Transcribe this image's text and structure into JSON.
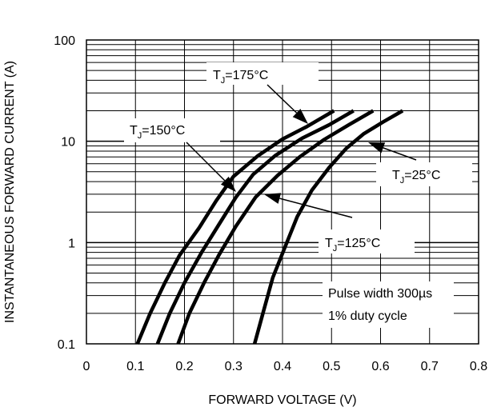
{
  "chart_data": {
    "type": "line",
    "title": "",
    "xlabel": "FORWARD VOLTAGE (V)",
    "ylabel": "INSTANTANEOUS FORWARD CURRENT (A)",
    "xlim": [
      0,
      0.8
    ],
    "ylim": [
      0.1,
      100
    ],
    "y_scale": "log",
    "grid": true,
    "x_ticks": [
      {
        "value": 0,
        "label": "0"
      },
      {
        "value": 0.1,
        "label": "0.1"
      },
      {
        "value": 0.2,
        "label": "0.2"
      },
      {
        "value": 0.3,
        "label": "0.3"
      },
      {
        "value": 0.4,
        "label": "0.4"
      },
      {
        "value": 0.5,
        "label": "0.5"
      },
      {
        "value": 0.6,
        "label": "0.6"
      },
      {
        "value": 0.7,
        "label": "0.7"
      },
      {
        "value": 0.8,
        "label": "0.8"
      }
    ],
    "y_ticks": [
      {
        "value": 0.1,
        "label": "0.1"
      },
      {
        "value": 1,
        "label": "1"
      },
      {
        "value": 10,
        "label": "10"
      },
      {
        "value": 100,
        "label": "100"
      }
    ],
    "series": [
      {
        "name": "TJ=175°C",
        "points": [
          [
            0.104,
            0.1
          ],
          [
            0.13,
            0.2
          ],
          [
            0.16,
            0.4
          ],
          [
            0.19,
            0.75
          ],
          [
            0.23,
            1.4
          ],
          [
            0.265,
            2.6
          ],
          [
            0.3,
            4.5
          ],
          [
            0.35,
            7.2
          ],
          [
            0.4,
            10.5
          ],
          [
            0.45,
            14
          ],
          [
            0.505,
            20
          ]
        ]
      },
      {
        "name": "TJ=150°C",
        "points": [
          [
            0.145,
            0.1
          ],
          [
            0.17,
            0.2
          ],
          [
            0.2,
            0.4
          ],
          [
            0.235,
            0.8
          ],
          [
            0.27,
            1.5
          ],
          [
            0.305,
            2.8
          ],
          [
            0.34,
            4.7
          ],
          [
            0.385,
            7.2
          ],
          [
            0.44,
            10.7
          ],
          [
            0.495,
            14.5
          ],
          [
            0.545,
            20
          ]
        ]
      },
      {
        "name": "TJ=125°C",
        "points": [
          [
            0.187,
            0.1
          ],
          [
            0.21,
            0.2
          ],
          [
            0.24,
            0.4
          ],
          [
            0.27,
            0.75
          ],
          [
            0.305,
            1.45
          ],
          [
            0.345,
            2.8
          ],
          [
            0.39,
            4.6
          ],
          [
            0.435,
            7
          ],
          [
            0.485,
            10.4
          ],
          [
            0.535,
            14.5
          ],
          [
            0.585,
            20
          ]
        ]
      },
      {
        "name": "TJ=25°C",
        "points": [
          [
            0.343,
            0.1
          ],
          [
            0.36,
            0.2
          ],
          [
            0.38,
            0.45
          ],
          [
            0.405,
            0.9
          ],
          [
            0.43,
            1.8
          ],
          [
            0.46,
            3.3
          ],
          [
            0.495,
            5.5
          ],
          [
            0.53,
            8.5
          ],
          [
            0.565,
            11.8
          ],
          [
            0.605,
            15.5
          ],
          [
            0.645,
            20
          ]
        ]
      }
    ],
    "annotations": [
      {
        "label": "T",
        "sub": "J",
        "rest": "=175°C"
      },
      {
        "label": "T",
        "sub": "J",
        "rest": "=150°C"
      },
      {
        "label": "T",
        "sub": "J",
        "rest": "=125°C"
      },
      {
        "label": "T",
        "sub": "J",
        "rest": "=25°C"
      },
      {
        "label": "Pulse width 300µs"
      },
      {
        "label": "1% duty cycle"
      }
    ]
  }
}
